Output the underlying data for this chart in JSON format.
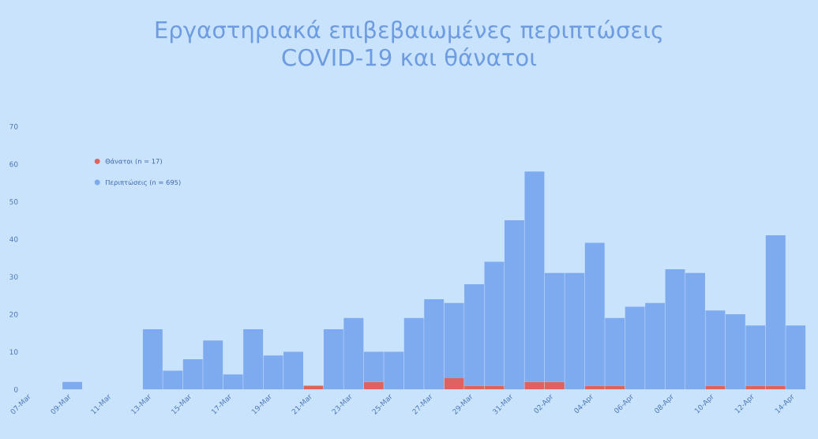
{
  "chart_data": {
    "type": "bar",
    "title": "Εργαστηριακά επιβεβαιωμένες περιπτώσεις\nCOVID-19 και θάνατοι",
    "categories": [
      "07-Mar",
      null,
      "09-Mar",
      null,
      "11-Mar",
      null,
      "13-Mar",
      null,
      "15-Mar",
      null,
      "17-Mar",
      null,
      "19-Mar",
      null,
      "21-Mar",
      null,
      "23-Mar",
      null,
      "25-Mar",
      null,
      "27-Mar",
      null,
      "29-Mar",
      null,
      "31-Mar",
      null,
      "02-Apr",
      null,
      "04-Apr",
      null,
      "06-Apr",
      null,
      "08-Apr",
      null,
      "10-Apr",
      null,
      "12-Apr",
      null,
      "14-Apr"
    ],
    "stacked": true,
    "series": [
      {
        "name": "Θάνατοι (n = 17)",
        "color": "#e0625e",
        "values": [
          0,
          0,
          0,
          0,
          0,
          0,
          0,
          0,
          0,
          0,
          0,
          0,
          0,
          0,
          1,
          0,
          0,
          2,
          0,
          0,
          0,
          3,
          1,
          1,
          0,
          2,
          2,
          0,
          1,
          1,
          0,
          0,
          0,
          0,
          1,
          0,
          1,
          1,
          0
        ]
      },
      {
        "name": "Περιπτώσεις (n = 695)",
        "color": "#7eaaf0",
        "values": [
          0,
          0,
          2,
          0,
          0,
          0,
          16,
          5,
          8,
          13,
          4,
          16,
          9,
          10,
          0,
          16,
          19,
          8,
          10,
          19,
          24,
          20,
          27,
          33,
          45,
          56,
          29,
          31,
          38,
          18,
          22,
          23,
          32,
          31,
          20,
          20,
          16,
          40,
          17
        ]
      }
    ],
    "ylim": [
      0,
      70
    ],
    "yticks": [
      0,
      10,
      20,
      30,
      40,
      50,
      60,
      70
    ],
    "grid": false,
    "legend": "top left"
  }
}
